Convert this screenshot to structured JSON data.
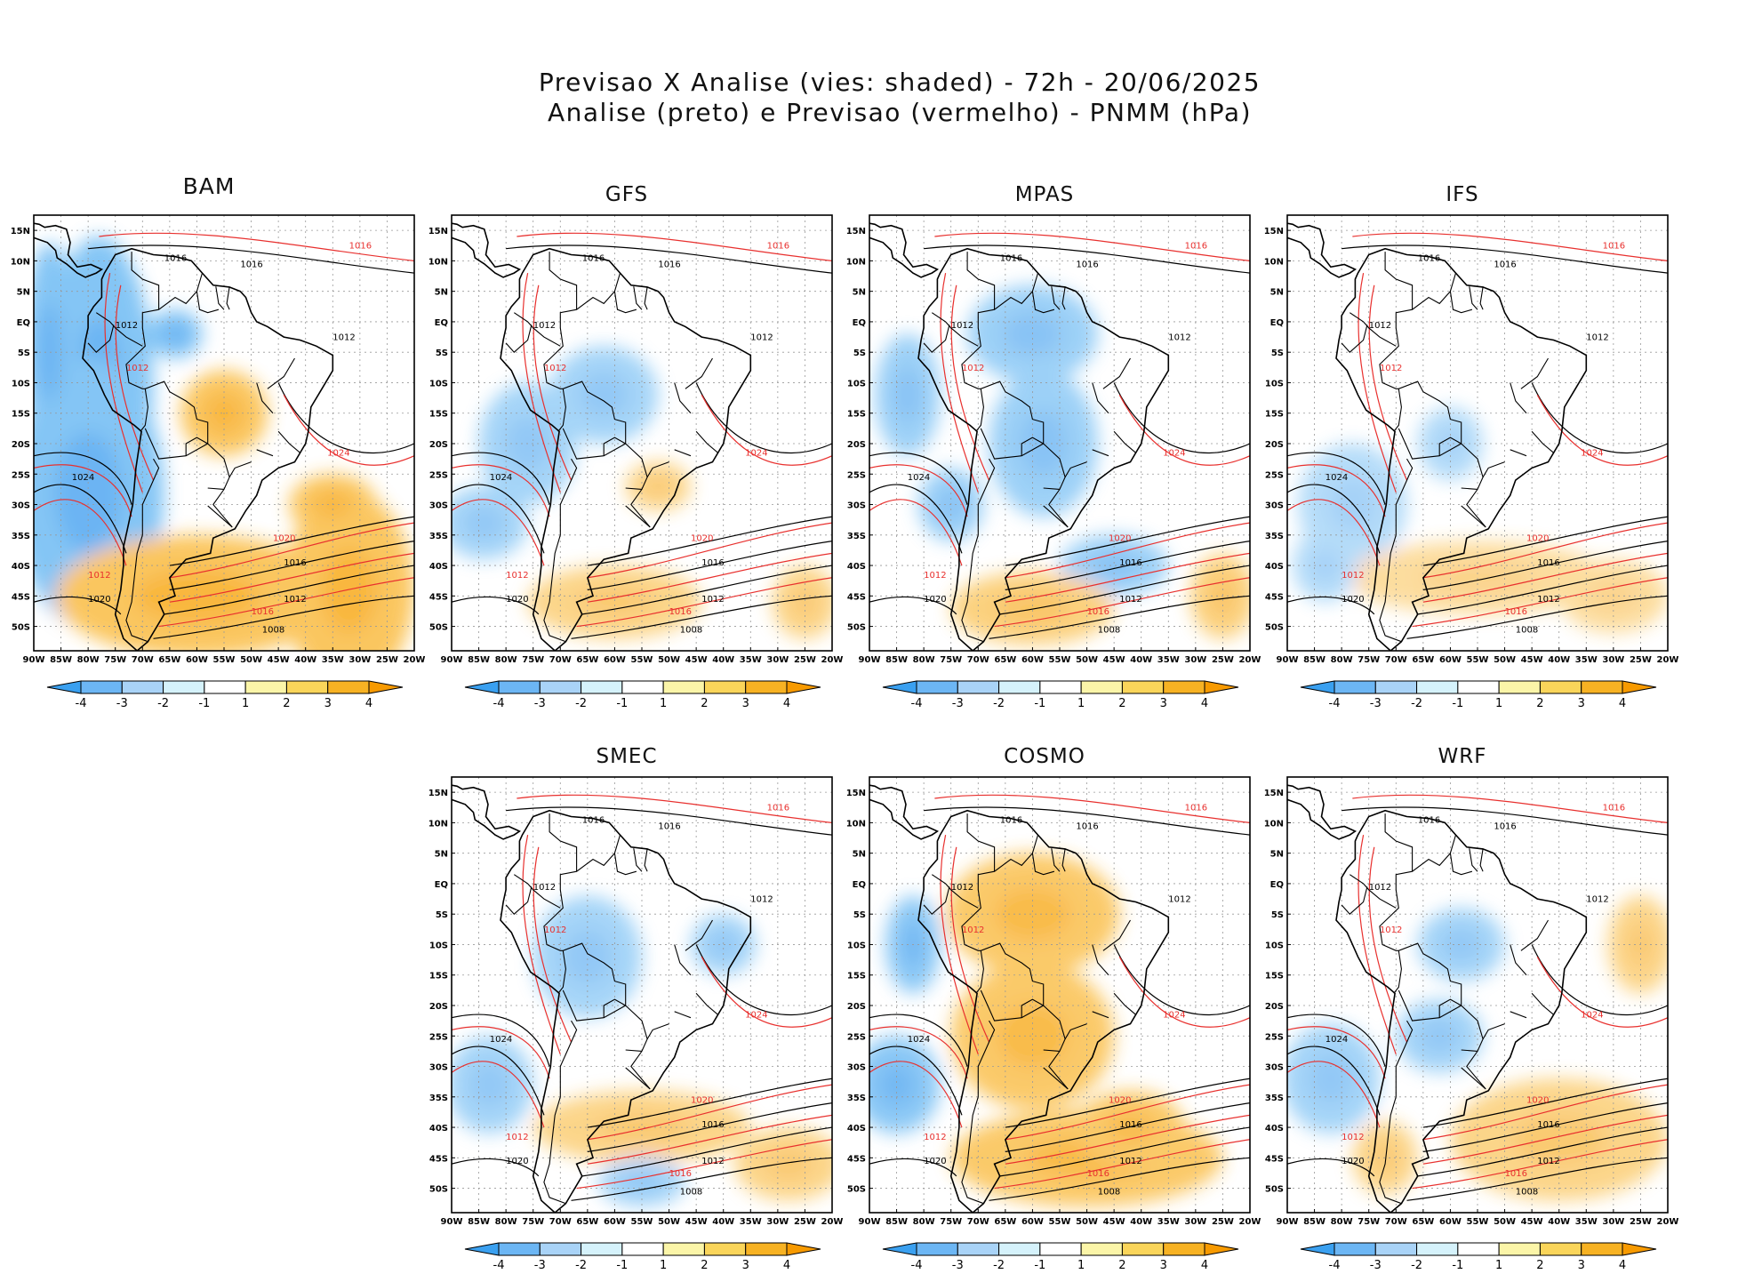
{
  "header": {
    "line1": "Previsao X Analise (vies: shaded) - 72h - 20/06/2025",
    "line2": "Analise (preto) e Previsao (vermelho) - PNMM (hPa)"
  },
  "axes": {
    "lat_labels": [
      "15N",
      "10N",
      "5N",
      "EQ",
      "5S",
      "10S",
      "15S",
      "20S",
      "25S",
      "30S",
      "35S",
      "40S",
      "45S",
      "50S"
    ],
    "lon_labels": [
      "90W",
      "85W",
      "80W",
      "75W",
      "70W",
      "65W",
      "60W",
      "55W",
      "50W",
      "45W",
      "40W",
      "35W",
      "30W",
      "25W",
      "20W"
    ]
  },
  "colorbar": {
    "ticks": [
      "-4",
      "-3",
      "-2",
      "-1",
      "1",
      "2",
      "3",
      "4"
    ],
    "colors": [
      "#3aa0f0",
      "#6cb6f4",
      "#a9d3f7",
      "#d5f2fb",
      "#ffffff",
      "#fbf5a8",
      "#fad55a",
      "#f7b223",
      "#f79a00"
    ]
  },
  "colors": {
    "analysis_contour": "#000000",
    "forecast_contour": "#e8302e",
    "grid": "#999999"
  },
  "contour_values": {
    "north": [
      "1012",
      "1016",
      "1016",
      "1012"
    ],
    "south": [
      "1024",
      "1020",
      "1016",
      "1012",
      "1008"
    ],
    "red": [
      "1016",
      "1012",
      "1024",
      "1020",
      "1016",
      "1012"
    ]
  },
  "panels": [
    {
      "id": "bam",
      "name": "BAM"
    },
    {
      "id": "gfs",
      "name": "GFS"
    },
    {
      "id": "mpas",
      "name": "MPAS"
    },
    {
      "id": "ifs",
      "name": "IFS"
    },
    {
      "id": "smec",
      "name": "SMEC"
    },
    {
      "id": "cosmo",
      "name": "COSMO"
    },
    {
      "id": "wrf",
      "name": "WRF"
    }
  ]
}
